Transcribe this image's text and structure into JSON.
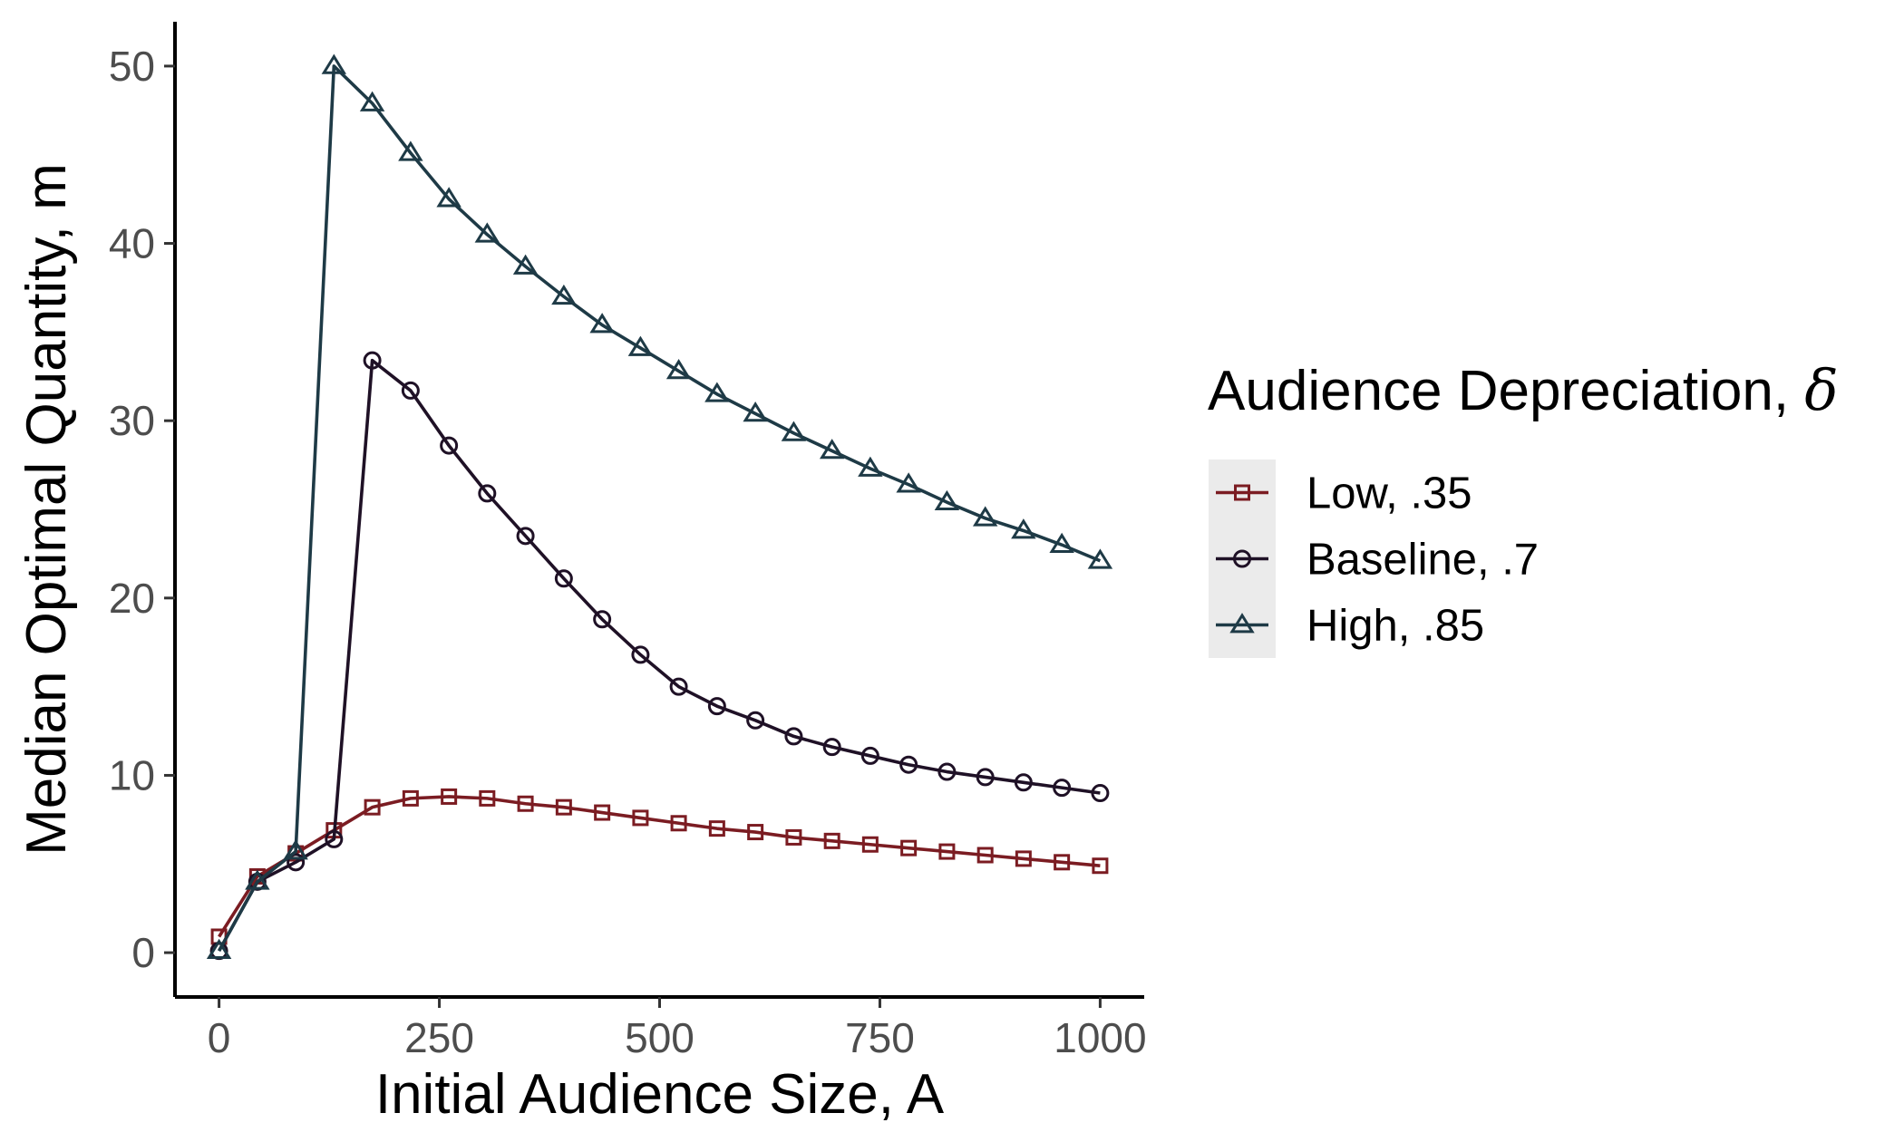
{
  "chart_data": {
    "type": "line",
    "title": "",
    "xlabel": "Initial Audience Size, A",
    "ylabel": "Median Optimal Quantity, m",
    "xlim": [
      -50,
      1050
    ],
    "ylim": [
      -2.5,
      52.5
    ],
    "xticks": [
      0,
      250,
      500,
      750,
      1000
    ],
    "yticks": [
      0,
      10,
      20,
      30,
      40,
      50
    ],
    "grid": false,
    "legend": {
      "title": "Audience Depreciation, ",
      "title_symbol": "δ",
      "position": "right"
    },
    "x": [
      0,
      43.5,
      87,
      130.4,
      173.9,
      217.4,
      260.9,
      304.3,
      347.8,
      391.3,
      434.8,
      478.3,
      521.7,
      565.2,
      608.7,
      652.2,
      695.7,
      739.1,
      782.6,
      826.1,
      869.6,
      913,
      956.5,
      1000
    ],
    "series": [
      {
        "name": "Low, .35",
        "color": "#7b1c22",
        "marker": "square",
        "values": [
          0.9,
          4.3,
          5.6,
          6.9,
          8.2,
          8.7,
          8.8,
          8.7,
          8.4,
          8.2,
          7.9,
          7.6,
          7.3,
          7.0,
          6.8,
          6.5,
          6.3,
          6.1,
          5.9,
          5.7,
          5.5,
          5.3,
          5.1,
          4.9
        ]
      },
      {
        "name": "Baseline, .7",
        "color": "#1f1126",
        "marker": "circle",
        "values": [
          0.1,
          4.0,
          5.1,
          6.4,
          33.4,
          31.7,
          28.6,
          25.9,
          23.5,
          21.1,
          18.8,
          16.8,
          15.0,
          13.9,
          13.1,
          12.2,
          11.6,
          11.1,
          10.6,
          10.2,
          9.9,
          9.6,
          9.3,
          9.0
        ]
      },
      {
        "name": "High, .85",
        "color": "#1e3a46",
        "marker": "triangle",
        "values": [
          0.1,
          4.0,
          5.7,
          50.0,
          47.9,
          45.1,
          42.5,
          40.5,
          38.7,
          37.0,
          35.4,
          34.1,
          32.8,
          31.5,
          30.4,
          29.3,
          28.3,
          27.3,
          26.4,
          25.4,
          24.5,
          23.8,
          23.0,
          22.1
        ]
      }
    ]
  }
}
